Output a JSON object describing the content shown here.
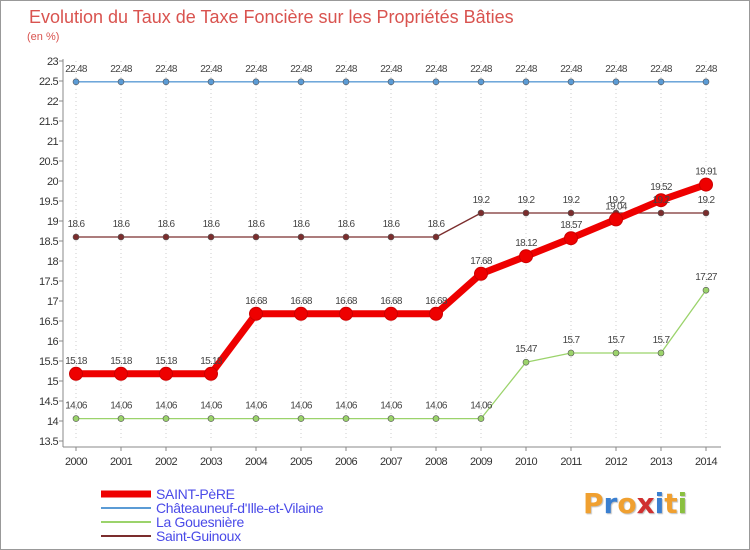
{
  "chart_data": {
    "type": "line",
    "title": "Evolution du Taux de Taxe Foncière sur les Propriétés Bâties",
    "subtitle": "(en %)",
    "categories": [
      "2000",
      "2001",
      "2002",
      "2003",
      "2004",
      "2005",
      "2006",
      "2007",
      "2008",
      "2009",
      "2010",
      "2011",
      "2012",
      "2013",
      "2014"
    ],
    "y_ticks": [
      "13.5",
      "14",
      "14.5",
      "15",
      "15.5",
      "16",
      "16.5",
      "17",
      "17.5",
      "18",
      "18.5",
      "19",
      "19.5",
      "20",
      "20.5",
      "21",
      "21.5",
      "22",
      "22.5",
      "23"
    ],
    "ylim": [
      13.5,
      23
    ],
    "grid": "vertical dotted",
    "legend_position": "bottom-left",
    "series": [
      {
        "name": "SAINT-PèRE",
        "color": "#ee0000",
        "values": [
          15.18,
          15.18,
          15.18,
          15.18,
          16.68,
          16.68,
          16.68,
          16.68,
          16.68,
          17.68,
          18.12,
          18.57,
          19.04,
          19.52,
          19.91
        ],
        "labels": [
          "15.18",
          "15.18",
          "15.18",
          "15.18",
          "16.68",
          "16.68",
          "16.68",
          "16.68",
          "16.68",
          "17.68",
          "18.12",
          "18.57",
          "19.04",
          "19.52",
          "19.91"
        ]
      },
      {
        "name": "Châteauneuf-d'Ille-et-Vilaine",
        "color": "#5b9bd5",
        "values": [
          22.48,
          22.48,
          22.48,
          22.48,
          22.48,
          22.48,
          22.48,
          22.48,
          22.48,
          22.48,
          22.48,
          22.48,
          22.48,
          22.48,
          22.48
        ],
        "labels": [
          "22.48",
          "22.48",
          "22.48",
          "22.48",
          "22.48",
          "22.48",
          "22.48",
          "22.48",
          "22.48",
          "22.48",
          "22.48",
          "22.48",
          "22.48",
          "22.48",
          "22.48"
        ]
      },
      {
        "name": "La Gouesnière",
        "color": "#9bd36b",
        "values": [
          14.06,
          14.06,
          14.06,
          14.06,
          14.06,
          14.06,
          14.06,
          14.06,
          14.06,
          14.06,
          15.47,
          15.7,
          15.7,
          15.7,
          17.27
        ],
        "labels": [
          "14.06",
          "14.06",
          "14.06",
          "14.06",
          "14.06",
          "14.06",
          "14.06",
          "14.06",
          "14.06",
          "14.06",
          "15.47",
          "15.7",
          "15.7",
          "15.7",
          "17.27"
        ]
      },
      {
        "name": "Saint-Guinoux",
        "color": "#7b2d2d",
        "values": [
          18.6,
          18.6,
          18.6,
          18.6,
          18.6,
          18.6,
          18.6,
          18.6,
          18.6,
          19.2,
          19.2,
          19.2,
          19.2,
          19.2,
          19.2
        ],
        "labels": [
          "18.6",
          "18.6",
          "18.6",
          "18.6",
          "18.6",
          "18.6",
          "18.6",
          "18.6",
          "18.6",
          "19.2",
          "19.2",
          "19.2",
          "19.2",
          "19.2",
          "19.2"
        ]
      }
    ]
  },
  "logo": {
    "letters": [
      "P",
      "r",
      "o",
      "x",
      "i",
      "t",
      "i"
    ],
    "colors": [
      "#f0a030",
      "#3a7fd0",
      "#f0a030",
      "#d03030",
      "#3a7fd0",
      "#f0a030",
      "#8ac040"
    ]
  }
}
